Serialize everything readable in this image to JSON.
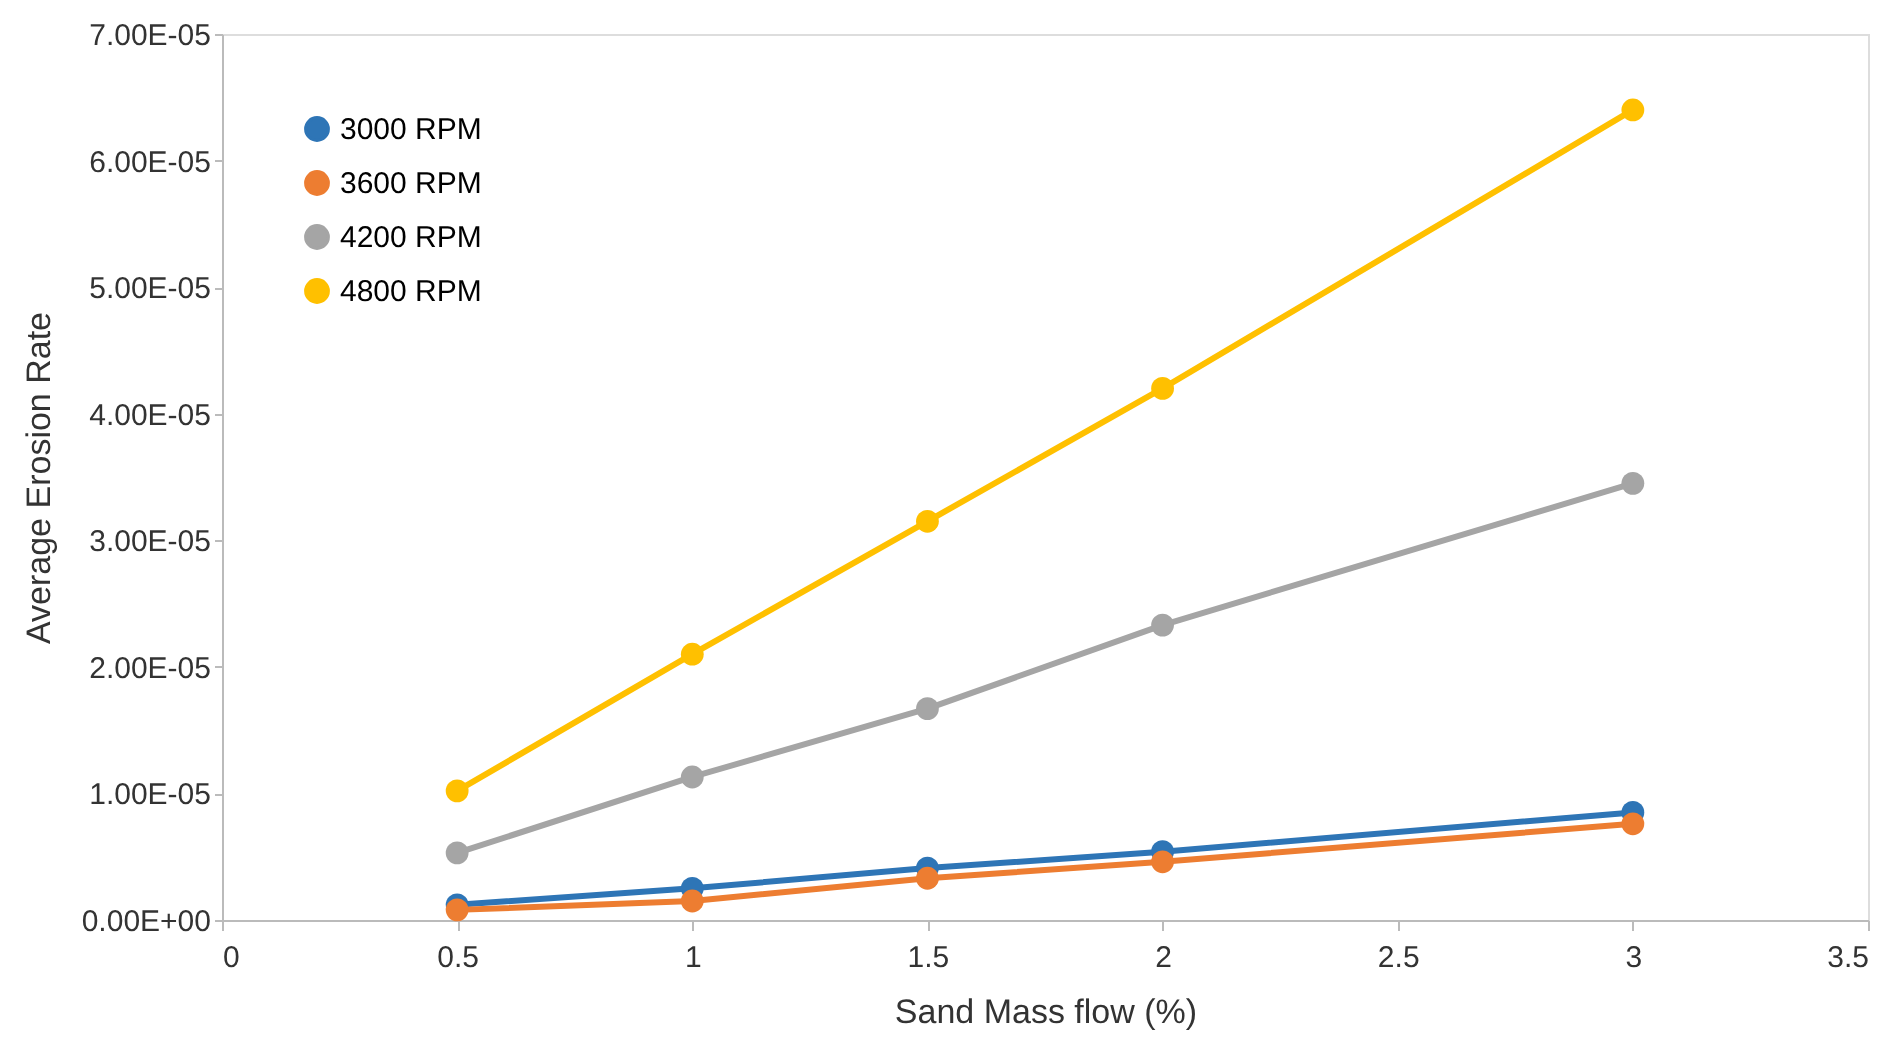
{
  "chart_data": {
    "type": "line",
    "xlabel": "Sand Mass flow (%)",
    "ylabel": "Average Erosion Rate",
    "xlim": [
      0,
      3.5
    ],
    "xticks": [
      0,
      0.5,
      1,
      1.5,
      2,
      2.5,
      3,
      3.5
    ],
    "ylim": [
      0,
      7e-05
    ],
    "yticks": [
      {
        "value": 0,
        "label": "0.00E+00"
      },
      {
        "value": 1e-05,
        "label": "1.00E-05"
      },
      {
        "value": 2e-05,
        "label": "2.00E-05"
      },
      {
        "value": 3e-05,
        "label": "3.00E-05"
      },
      {
        "value": 4e-05,
        "label": "4.00E-05"
      },
      {
        "value": 5e-05,
        "label": "5.00E-05"
      },
      {
        "value": 6e-05,
        "label": "6.00E-05"
      },
      {
        "value": 7e-05,
        "label": "7.00E-05"
      }
    ],
    "x": [
      0.5,
      1,
      1.5,
      2,
      3
    ],
    "series": [
      {
        "name": "3000 RPM",
        "color": "#2e75b6",
        "values": [
          1.2e-06,
          2.5e-06,
          4.1e-06,
          5.4e-06,
          8.5e-06
        ]
      },
      {
        "name": "3600 RPM",
        "color": "#ed7d31",
        "values": [
          8e-07,
          1.5e-06,
          3.3e-06,
          4.6e-06,
          7.6e-06
        ]
      },
      {
        "name": "4200 RPM",
        "color": "#a5a5a5",
        "values": [
          5.3e-06,
          1.13e-05,
          1.67e-05,
          2.33e-05,
          3.45e-05
        ]
      },
      {
        "name": "4800 RPM",
        "color": "#ffc000",
        "values": [
          1.02e-05,
          2.1e-05,
          3.15e-05,
          4.2e-05,
          6.4e-05
        ]
      }
    ],
    "legend": "top left",
    "marker": "circle",
    "grid": false
  }
}
